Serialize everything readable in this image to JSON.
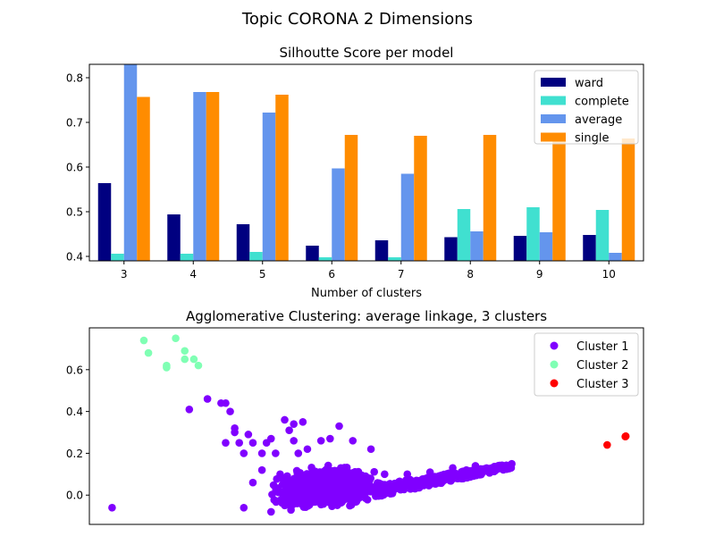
{
  "figure_title": "Topic CORONA 2 Dimensions",
  "chart_data": [
    {
      "type": "bar",
      "title": "Silhoutte Score per model",
      "xlabel": "Number of clusters",
      "ylabel": "",
      "categories": [
        "3",
        "4",
        "5",
        "6",
        "7",
        "8",
        "9",
        "10"
      ],
      "ylim": [
        0.39,
        0.83
      ],
      "yticks": [
        0.4,
        0.5,
        0.6,
        0.7,
        0.8
      ],
      "legend_position": "top-right",
      "series": [
        {
          "name": "ward",
          "color": "#000080",
          "values": [
            0.564,
            0.494,
            0.472,
            0.424,
            0.436,
            0.443,
            0.446,
            0.448
          ]
        },
        {
          "name": "complete",
          "color": "#40e0d0",
          "values": [
            0.406,
            0.406,
            0.41,
            0.398,
            0.398,
            0.506,
            0.51,
            0.504
          ]
        },
        {
          "name": "average",
          "color": "#6495ed",
          "values": [
            0.833,
            0.768,
            0.722,
            0.597,
            0.585,
            0.456,
            0.454,
            0.408
          ]
        },
        {
          "name": "single",
          "color": "#ff8c00",
          "values": [
            0.757,
            0.768,
            0.762,
            0.672,
            0.67,
            0.672,
            0.672,
            0.664
          ]
        }
      ]
    },
    {
      "type": "scatter",
      "title": "Agglomerative Clustering: average linkage, 3 clusters",
      "xlabel": "",
      "ylabel": "",
      "xlim": [
        -0.35,
        0.87
      ],
      "ylim": [
        -0.14,
        0.8
      ],
      "yticks": [
        0.0,
        0.2,
        0.4,
        0.6
      ],
      "legend_position": "top-right",
      "series": [
        {
          "name": "Cluster 1",
          "color": "#8000ff",
          "points": [
            [
              -0.3,
              -0.06
            ],
            [
              -0.09,
              0.46
            ],
            [
              -0.13,
              0.41
            ],
            [
              -0.05,
              0.44
            ],
            [
              -0.06,
              0.44
            ],
            [
              -0.04,
              0.4
            ],
            [
              -0.03,
              0.32
            ],
            [
              -0.03,
              0.3
            ],
            [
              -0.05,
              0.25
            ],
            [
              -0.02,
              0.25
            ],
            [
              0.0,
              0.29
            ],
            [
              0.01,
              0.25
            ],
            [
              0.04,
              0.25
            ],
            [
              0.05,
              0.27
            ],
            [
              -0.01,
              0.2
            ],
            [
              0.03,
              0.2
            ],
            [
              0.08,
              0.36
            ],
            [
              0.09,
              0.31
            ],
            [
              0.1,
              0.34
            ],
            [
              0.12,
              0.35
            ],
            [
              0.06,
              0.2
            ],
            [
              0.1,
              0.26
            ],
            [
              0.11,
              0.2
            ],
            [
              0.13,
              0.22
            ],
            [
              0.2,
              0.33
            ],
            [
              0.18,
              0.27
            ],
            [
              0.16,
              0.26
            ],
            [
              0.23,
              0.26
            ],
            [
              0.27,
              0.22
            ],
            [
              -0.01,
              -0.06
            ],
            [
              0.01,
              0.06
            ],
            [
              0.03,
              0.12
            ],
            [
              0.05,
              -0.08
            ],
            [
              0.07,
              0.1
            ],
            [
              0.3,
              0.1
            ],
            [
              0.35,
              0.1
            ],
            [
              0.4,
              0.11
            ],
            [
              0.45,
              0.13
            ],
            [
              0.5,
              0.14
            ],
            [
              0.55,
              0.14
            ],
            [
              0.58,
              0.15
            ],
            [
              0.48,
              0.12
            ],
            [
              0.42,
              0.09
            ],
            [
              0.37,
              0.07
            ],
            [
              0.33,
              0.06
            ],
            [
              0.3,
              0.05
            ]
          ],
          "blob": {
            "x_range": [
              0.02,
              0.32
            ],
            "y_range": [
              -0.09,
              0.16
            ],
            "count": 1400
          },
          "trail": {
            "x_range": [
              0.28,
              0.58
            ],
            "y_start": 0.02,
            "y_end": 0.14,
            "count": 260
          }
        },
        {
          "name": "Cluster 2",
          "color": "#80ffb4",
          "points": [
            [
              -0.23,
              0.74
            ],
            [
              -0.22,
              0.68
            ],
            [
              -0.18,
              0.62
            ],
            [
              -0.18,
              0.61
            ],
            [
              -0.16,
              0.75
            ],
            [
              -0.14,
              0.65
            ],
            [
              -0.14,
              0.69
            ],
            [
              -0.12,
              0.65
            ],
            [
              -0.11,
              0.62
            ]
          ]
        },
        {
          "name": "Cluster 3",
          "color": "#ff0000",
          "points": [
            [
              0.79,
              0.24
            ],
            [
              0.83,
              0.28
            ],
            [
              0.831,
              0.282
            ]
          ]
        }
      ]
    }
  ]
}
